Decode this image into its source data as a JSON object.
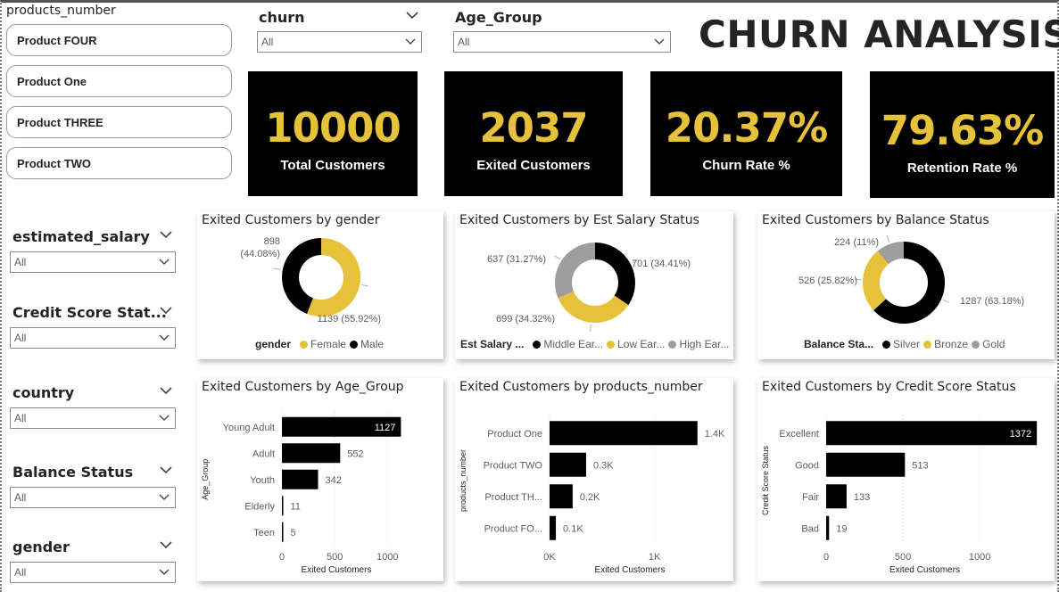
{
  "title": "CHURN ANALYSIS",
  "colors": {
    "accent": "#e6c13a",
    "dark": "#000000",
    "gray": "#9e9e9e"
  },
  "slicers": {
    "products_number": {
      "title": "products_number",
      "items": [
        "Product FOUR",
        "Product One",
        "Product THREE",
        "Product TWO"
      ]
    },
    "churn": {
      "label": "churn",
      "value": "All"
    },
    "age_group": {
      "label": "Age_Group",
      "value": "All"
    },
    "estimated_salary": {
      "label": "estimated_salary",
      "value": "All"
    },
    "credit_score_status": {
      "label": "Credit Score Stat...",
      "value": "All"
    },
    "country": {
      "label": "country",
      "value": "All"
    },
    "balance_status": {
      "label": "Balance Status",
      "value": "All"
    },
    "gender": {
      "label": "gender",
      "value": "All"
    }
  },
  "kpis": [
    {
      "value": "10000",
      "label": "Total Customers"
    },
    {
      "value": "2037",
      "label": "Exited Customers"
    },
    {
      "value": "20.37%",
      "label": "Churn Rate %"
    },
    {
      "value": "79.63%",
      "label": "Retention Rate %"
    }
  ],
  "chart_data": [
    {
      "type": "pie",
      "title": "Exited Customers by gender",
      "legend_title": "gender",
      "legend_position": "bottom",
      "categories": [
        "Female",
        "Male"
      ],
      "values": [
        1139,
        898
      ],
      "percents": [
        "55.92%",
        "44.08%"
      ],
      "data_labels": [
        "1139 (55.92%)",
        "898 (44.08%)"
      ],
      "colors": [
        "#e6c13a",
        "#000000"
      ]
    },
    {
      "type": "pie",
      "title": "Exited Customers by Est Salary Status",
      "legend_title": "Est Salary ...",
      "legend_position": "bottom",
      "categories": [
        "Middle Ear...",
        "Low Ear...",
        "High Ear..."
      ],
      "values": [
        701,
        699,
        637
      ],
      "percents": [
        "34.41%",
        "34.32%",
        "31.27%"
      ],
      "data_labels": [
        "701 (34.41%)",
        "699 (34.32%)",
        "637 (31.27%)"
      ],
      "colors": [
        "#000000",
        "#e6c13a",
        "#9e9e9e"
      ]
    },
    {
      "type": "pie",
      "title": "Exited Customers by Balance Status",
      "legend_title": "Balance Sta...",
      "legend_position": "bottom",
      "categories": [
        "Silver",
        "Bronze",
        "Gold"
      ],
      "values": [
        1287,
        526,
        224
      ],
      "percents": [
        "63.18%",
        "25.82%",
        "11%"
      ],
      "data_labels": [
        "1287 (63.18%)",
        "526 (25.82%)",
        "224 (11%)"
      ],
      "colors": [
        "#000000",
        "#e6c13a",
        "#9e9e9e"
      ]
    },
    {
      "type": "bar",
      "orientation": "horizontal",
      "title": "Exited Customers by Age_Group",
      "xlabel": "Exited Customers",
      "ylabel": "Age_Group",
      "categories": [
        "Young Adult",
        "Adult",
        "Youth",
        "Elderly",
        "Teen"
      ],
      "values": [
        1127,
        552,
        342,
        11,
        5
      ],
      "data_labels": [
        "1127",
        "552",
        "342",
        "11",
        "5"
      ],
      "xlim": [
        0,
        1200
      ],
      "xticks": [
        0,
        500,
        1000
      ],
      "xtick_labels": [
        "0",
        "500",
        "1000"
      ]
    },
    {
      "type": "bar",
      "orientation": "horizontal",
      "title": "Exited Customers by products_number",
      "xlabel": "Exited Customers",
      "ylabel": "products_number",
      "categories": [
        "Product One",
        "Product TWO",
        "Product TH...",
        "Product FO..."
      ],
      "values": [
        1409,
        348,
        220,
        60
      ],
      "data_labels": [
        "1.4K",
        "0.3K",
        "0.2K",
        "0.1K"
      ],
      "xlim": [
        0,
        1700
      ],
      "xticks": [
        0,
        1000
      ],
      "xtick_labels": [
        "0K",
        "1K"
      ]
    },
    {
      "type": "bar",
      "orientation": "horizontal",
      "title": "Exited Customers by Credit Score Status",
      "xlabel": "Exited Customers",
      "ylabel": "Credit Score Status",
      "categories": [
        "Excellent",
        "Good",
        "Fair",
        "Bad"
      ],
      "values": [
        1372,
        513,
        133,
        19
      ],
      "data_labels": [
        "1372",
        "513",
        "133",
        "19"
      ],
      "xlim": [
        0,
        1400
      ],
      "xticks": [
        0,
        500,
        1000
      ],
      "xtick_labels": [
        "0",
        "500",
        "1000"
      ]
    }
  ]
}
